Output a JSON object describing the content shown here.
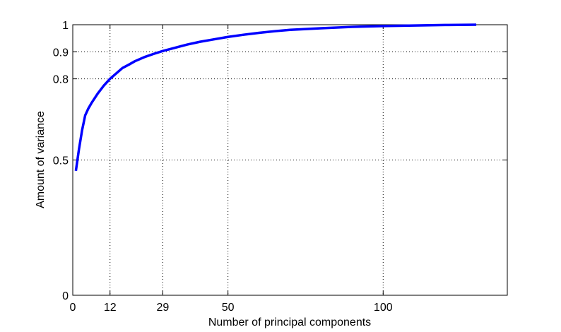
{
  "chart_data": {
    "type": "line",
    "xlabel": "Number of principal components",
    "ylabel": "Amount of variance",
    "x": [
      1,
      2,
      3,
      4,
      5,
      6,
      8,
      10,
      12,
      14,
      16,
      18,
      20,
      23,
      26,
      29,
      33,
      37,
      41,
      45,
      50,
      55,
      60,
      65,
      70,
      80,
      90,
      100,
      110,
      120,
      130
    ],
    "series": [
      {
        "color": "#0000ff",
        "values": [
          0.46,
          0.54,
          0.61,
          0.665,
          0.69,
          0.71,
          0.745,
          0.775,
          0.8,
          0.82,
          0.84,
          0.852,
          0.865,
          0.88,
          0.892,
          0.903,
          0.915,
          0.927,
          0.937,
          0.945,
          0.955,
          0.963,
          0.97,
          0.976,
          0.981,
          0.987,
          0.992,
          0.995,
          0.997,
          0.999,
          1.0
        ]
      }
    ],
    "xlim": [
      0,
      140
    ],
    "xticks": [
      0,
      12,
      29,
      50,
      100
    ],
    "ylim": [
      0,
      1
    ],
    "yticks": [
      0,
      0.5,
      0.8,
      0.9,
      1
    ],
    "grid": true
  }
}
